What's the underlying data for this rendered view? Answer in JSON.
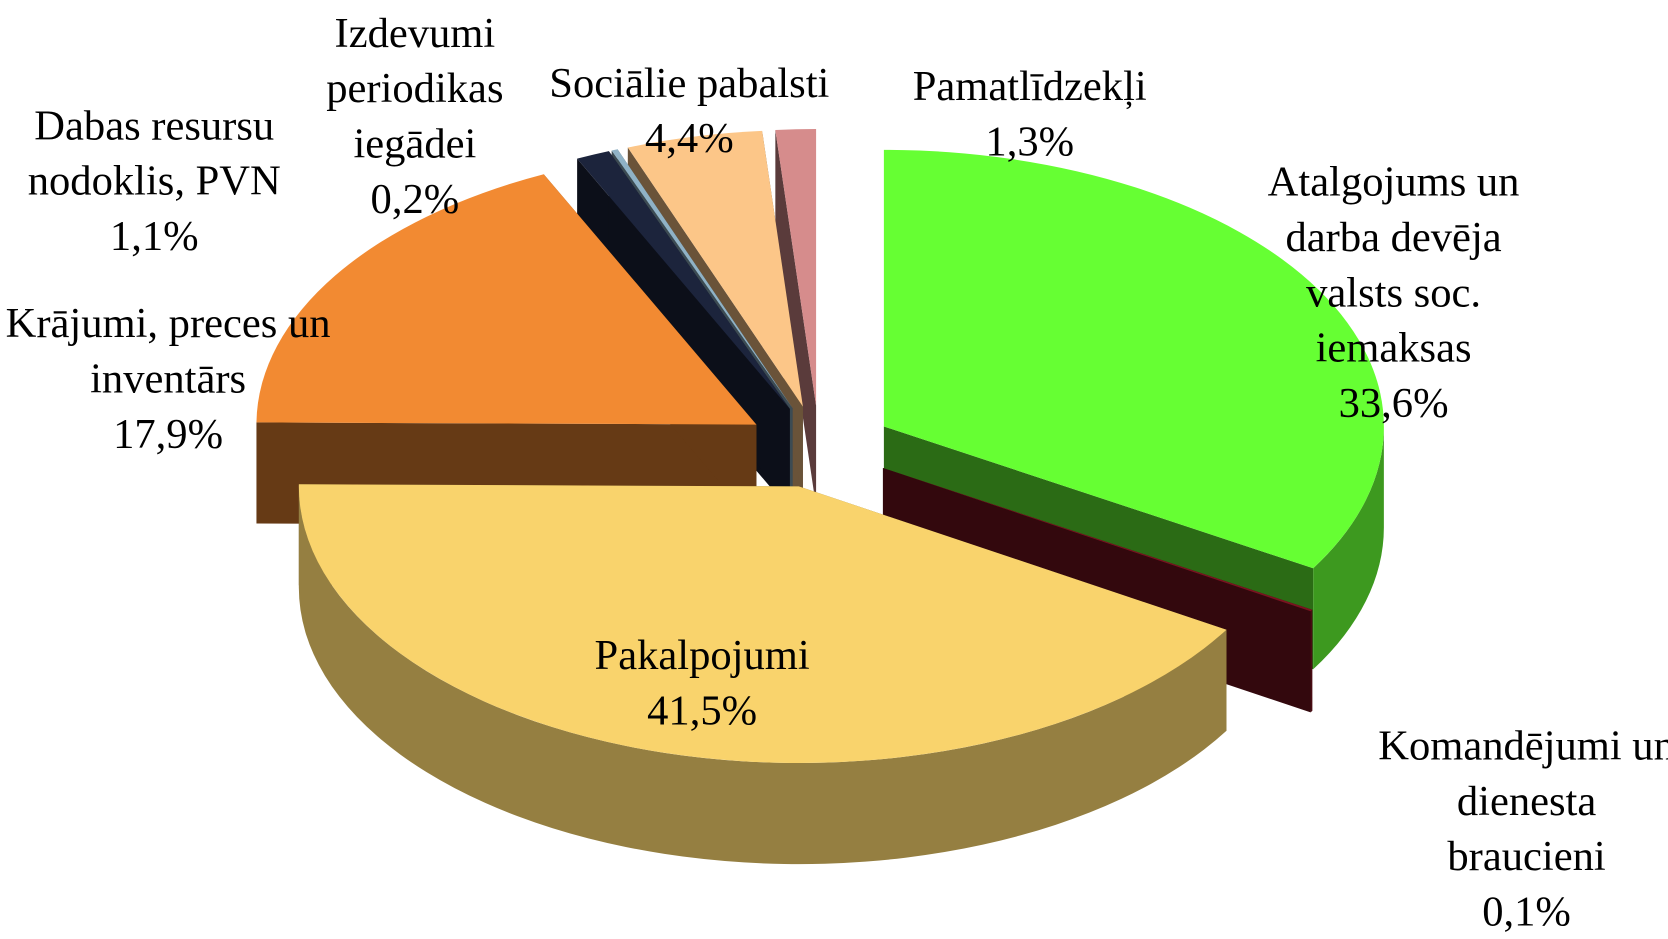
{
  "chart_data": {
    "type": "pie",
    "categories": [
      "Atalgojums un darba devēja valsts soc. iemaksas",
      "Komandējumi un dienesta braucieni",
      "Pakalpojumi",
      "Krājumi, preces un inventārs",
      "Dabas resursu nodoklis, PVN",
      "Izdevumi periodikas iegādei",
      "Sociālie pabalsti",
      "Pamatlīdzekļi"
    ],
    "values": [
      33.6,
      0.1,
      41.5,
      17.9,
      1.1,
      0.2,
      4.4,
      1.3
    ],
    "value_labels": [
      "33,6%",
      "0,1%",
      "41,5%",
      "17,9%",
      "1,1%",
      "0,2%",
      "4,4%",
      "1,3%"
    ],
    "colors": [
      "#66ff33",
      "#7a1420",
      "#f9d36c",
      "#f28a32",
      "#1c243c",
      "#8fb2c6",
      "#fcc688",
      "#d68c8c"
    ]
  }
}
